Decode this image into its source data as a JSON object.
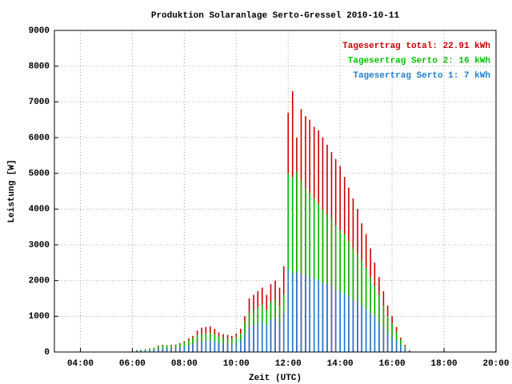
{
  "chart_data": {
    "type": "bar",
    "title": "Produktion Solaranlage Serto-Gressel 2010-10-11",
    "x_label": "Zeit (UTC)",
    "y_label": "Leistung [W]",
    "xlim": [
      3,
      20
    ],
    "xticks": [
      {
        "value": 4,
        "label": "04:00"
      },
      {
        "value": 6,
        "label": "06:00"
      },
      {
        "value": 8,
        "label": "08:00"
      },
      {
        "value": 10,
        "label": "10:00"
      },
      {
        "value": 12,
        "label": "12:00"
      },
      {
        "value": 14,
        "label": "14:00"
      },
      {
        "value": 16,
        "label": "16:00"
      },
      {
        "value": 18,
        "label": "18:00"
      },
      {
        "value": 20,
        "label": "20:00"
      }
    ],
    "ylim": [
      0,
      9000
    ],
    "yticks": [
      0,
      1000,
      2000,
      3000,
      4000,
      5000,
      6000,
      7000,
      8000,
      9000
    ],
    "grid": true,
    "legend": "top-right",
    "x": [
      6.17,
      6.33,
      6.5,
      6.67,
      6.83,
      7,
      7.17,
      7.33,
      7.5,
      7.67,
      7.83,
      8,
      8.17,
      8.33,
      8.5,
      8.67,
      8.83,
      9,
      9.17,
      9.33,
      9.5,
      9.67,
      9.83,
      10,
      10.17,
      10.33,
      10.5,
      10.67,
      10.83,
      11,
      11.17,
      11.33,
      11.5,
      11.67,
      11.83,
      12,
      12.17,
      12.33,
      12.5,
      12.67,
      12.83,
      13,
      13.17,
      13.33,
      13.5,
      13.67,
      13.83,
      14,
      14.17,
      14.33,
      14.5,
      14.67,
      14.83,
      15,
      15.17,
      15.33,
      15.5,
      15.67,
      15.83,
      16,
      16.17,
      16.33,
      16.5,
      16.67
    ],
    "series": [
      {
        "name": "Tagesertrag total: 22.91 kWh",
        "color": "#cc0000",
        "stack": false,
        "values": [
          50,
          60,
          80,
          100,
          120,
          180,
          200,
          190,
          200,
          210,
          250,
          300,
          380,
          450,
          600,
          680,
          700,
          720,
          650,
          550,
          500,
          480,
          450,
          520,
          650,
          1000,
          1500,
          1600,
          1700,
          1800,
          1600,
          1900,
          2000,
          1800,
          2400,
          6700,
          7300,
          6000,
          6800,
          6600,
          6500,
          6300,
          6200,
          6000,
          5800,
          5600,
          5400,
          5200,
          4900,
          4600,
          4300,
          4000,
          3600,
          3300,
          2900,
          2500,
          2100,
          1700,
          1300,
          1000,
          700,
          400,
          200,
          50
        ]
      },
      {
        "name": "Tagesertrag Serto 2: 16 kWh",
        "color": "#00c000",
        "stack": true,
        "values": [
          15,
          20,
          25,
          35,
          45,
          70,
          80,
          80,
          85,
          90,
          100,
          120,
          150,
          180,
          200,
          200,
          200,
          210,
          200,
          180,
          170,
          160,
          150,
          170,
          200,
          350,
          400,
          420,
          450,
          480,
          420,
          500,
          500,
          450,
          500,
          2700,
          2700,
          2800,
          2600,
          2450,
          2350,
          2250,
          2150,
          2050,
          1950,
          1900,
          1800,
          1700,
          1650,
          1550,
          1450,
          1350,
          1250,
          1150,
          1000,
          850,
          750,
          600,
          450,
          350,
          250,
          150,
          60,
          15
        ]
      },
      {
        "name": "Tagesertrag Serto 1: 7 kWh",
        "color": "#1e7fd6",
        "stack": true,
        "values": [
          30,
          35,
          45,
          55,
          65,
          90,
          100,
          100,
          105,
          110,
          130,
          150,
          190,
          220,
          280,
          300,
          320,
          330,
          300,
          260,
          240,
          230,
          220,
          250,
          320,
          500,
          700,
          750,
          800,
          850,
          750,
          900,
          950,
          850,
          1100,
          2300,
          2200,
          2250,
          2200,
          2150,
          2100,
          2050,
          2000,
          1950,
          1900,
          1850,
          1750,
          1700,
          1650,
          1550,
          1450,
          1400,
          1300,
          1200,
          1100,
          1000,
          850,
          700,
          550,
          450,
          320,
          200,
          100,
          20
        ]
      }
    ]
  }
}
